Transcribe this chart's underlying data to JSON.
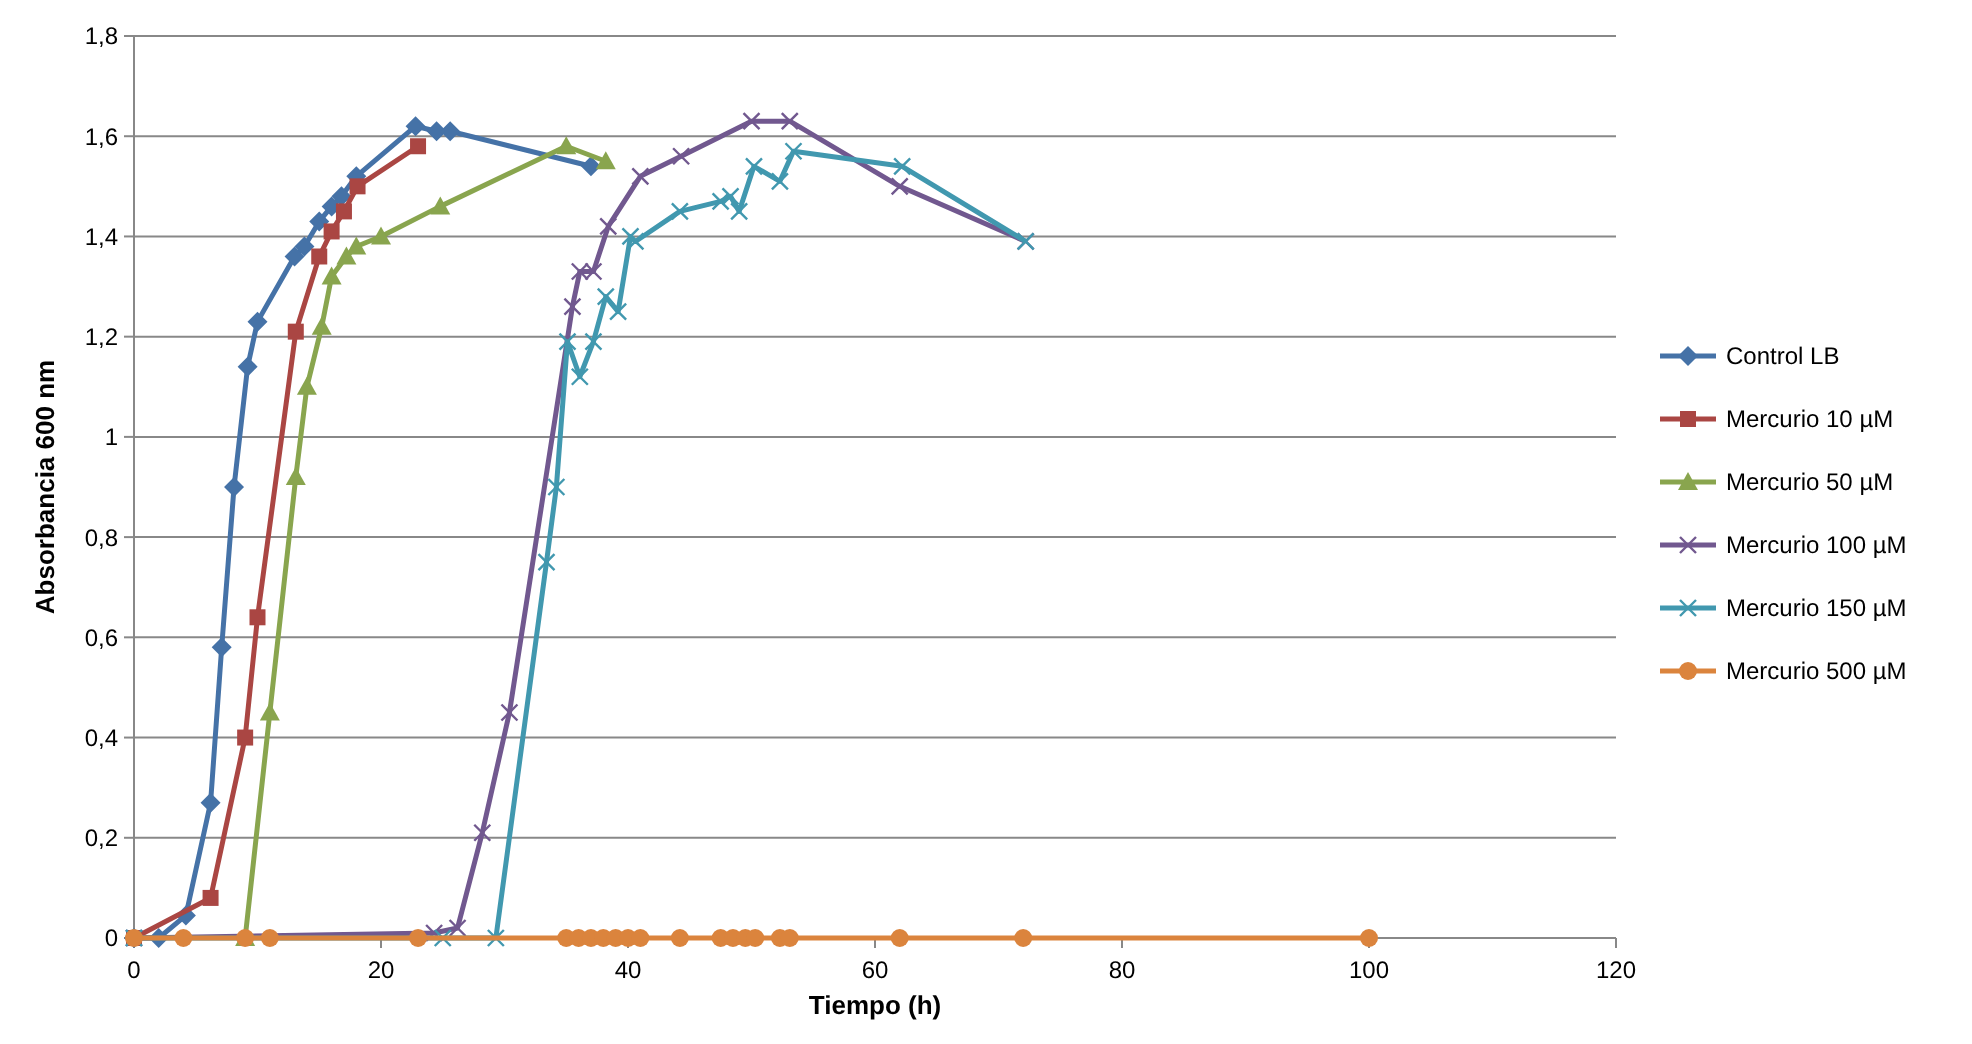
{
  "chart_data": {
    "type": "line",
    "xlabel": "Tiempo (h)",
    "ylabel": "Absorbancia 600 nm",
    "xlim": [
      0,
      120
    ],
    "xticks": [
      0,
      20,
      40,
      60,
      80,
      100,
      120
    ],
    "ylim": [
      0,
      1.8
    ],
    "yticks": [
      0,
      {
        "value": 0.2,
        "label": "0,2"
      },
      {
        "value": 0.4,
        "label": "0,4"
      },
      {
        "value": 0.6,
        "label": "0,6"
      },
      {
        "value": 0.8,
        "label": "0,8"
      },
      1,
      {
        "value": 1.2,
        "label": "1,2"
      },
      {
        "value": 1.4,
        "label": "1,4"
      },
      {
        "value": 1.6,
        "label": "1,6"
      },
      {
        "value": 1.8,
        "label": "1,8"
      }
    ],
    "grid": "y",
    "legend": "right",
    "line_style": "solid",
    "series": [
      {
        "name": "Control LB",
        "color": "#4572a7",
        "marker": "diamond",
        "x": [
          0,
          2,
          4.2,
          6.2,
          7.1,
          8.1,
          9.2,
          10,
          13,
          13.8,
          15,
          16,
          16.8,
          18,
          22.8,
          24.5,
          25.6,
          37
        ],
        "values": [
          0,
          0,
          0.045,
          0.27,
          0.58,
          0.9,
          1.14,
          1.23,
          1.36,
          1.38,
          1.43,
          1.46,
          1.48,
          1.52,
          1.62,
          1.61,
          1.61,
          1.54
        ]
      },
      {
        "name": "Mercurio 10 µM",
        "color": "#aa4643",
        "marker": "square",
        "x": [
          0,
          6.2,
          9,
          10,
          13.1,
          15,
          16,
          17,
          18.1,
          23
        ],
        "values": [
          0,
          0.08,
          0.4,
          0.64,
          1.21,
          1.36,
          1.41,
          1.45,
          1.5,
          1.58
        ]
      },
      {
        "name": "Mercurio 50 µM",
        "color": "#89a54e",
        "marker": "triangle",
        "x": [
          9,
          11,
          13.1,
          14,
          15.2,
          16,
          17.2,
          18,
          20,
          24.8,
          35,
          38.2
        ],
        "values": [
          0,
          0.45,
          0.92,
          1.1,
          1.22,
          1.32,
          1.36,
          1.38,
          1.4,
          1.46,
          1.58,
          1.55
        ]
      },
      {
        "name": "Mercurio 100 µM",
        "color": "#71588f",
        "marker": "cross",
        "x": [
          0,
          24.3,
          26.2,
          28.2,
          30.4,
          35.5,
          36.1,
          37.2,
          38.4,
          41,
          44.3,
          50,
          53.1,
          62,
          72.2
        ],
        "values": [
          0,
          0.01,
          0.02,
          0.21,
          0.45,
          1.26,
          1.33,
          1.33,
          1.42,
          1.52,
          1.56,
          1.63,
          1.63,
          1.5,
          1.39
        ]
      },
      {
        "name": "Mercurio 150 µM",
        "color": "#4198af",
        "marker": "cross",
        "x": [
          0,
          25,
          29.3,
          33.4,
          34.2,
          35.1,
          36.1,
          37.2,
          38.2,
          39.2,
          40.2,
          40.6,
          44.2,
          47.5,
          48.3,
          49,
          50.2,
          52.3,
          53.4,
          62.2,
          72.2
        ],
        "values": [
          0,
          0,
          0,
          0.75,
          0.9,
          1.19,
          1.12,
          1.19,
          1.28,
          1.25,
          1.4,
          1.39,
          1.45,
          1.47,
          1.48,
          1.45,
          1.54,
          1.51,
          1.57,
          1.54,
          1.39
        ]
      },
      {
        "name": "Mercurio 500 µM",
        "color": "#db843d",
        "marker": "circle",
        "x": [
          0,
          4,
          9,
          11,
          23,
          35,
          36,
          37,
          38,
          39,
          40,
          41,
          44.2,
          47.5,
          48.5,
          49.5,
          50.3,
          52.3,
          53.1,
          62,
          72,
          100
        ],
        "values": [
          0,
          0,
          0,
          0,
          0,
          0,
          0,
          0,
          0,
          0,
          0,
          0,
          0,
          0,
          0,
          0,
          0,
          0,
          0,
          0,
          0,
          0
        ]
      }
    ]
  }
}
